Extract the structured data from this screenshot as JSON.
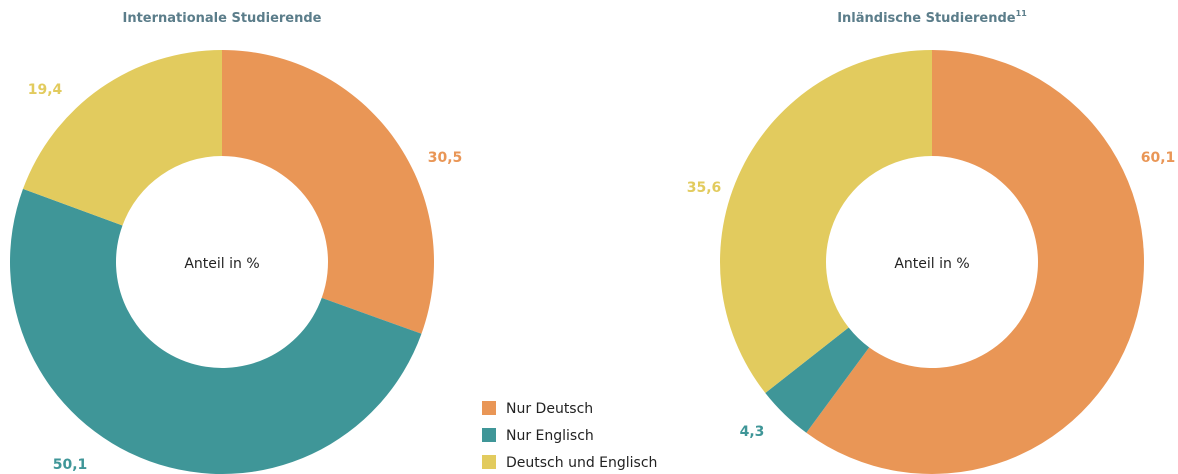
{
  "legend": {
    "labels": [
      "Nur Deutsch",
      "Nur Englisch",
      "Deutsch und Englisch"
    ],
    "colors": [
      "#e99656",
      "#3f9698",
      "#e2cb5e"
    ]
  },
  "chart_data": [
    {
      "type": "donut",
      "title": "Internationale Studierende",
      "center_label": "Anteil in %",
      "values": [
        30.5,
        50.1,
        19.4
      ],
      "value_labels": [
        "30,5",
        "50,1",
        "19,4"
      ]
    },
    {
      "type": "donut",
      "title": "Inländische Studierende",
      "title_note": "11",
      "center_label": "Anteil in %",
      "values": [
        60.1,
        4.3,
        35.6
      ],
      "value_labels": [
        "60,1",
        "4,3",
        "35,6"
      ]
    }
  ]
}
